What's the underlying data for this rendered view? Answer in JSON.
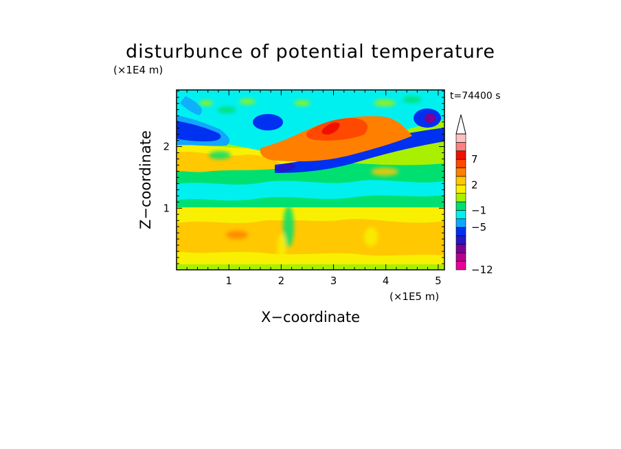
{
  "chart_data": {
    "type": "heatmap",
    "title": "disturbunce of potential temperature",
    "time_label": "t=74400 s",
    "xlabel": "X−coordinate",
    "ylabel": "Z−coordinate",
    "x_unit": "(×1E5 m)",
    "y_unit": "(×1E4 m)",
    "xlim": [
      0,
      5.12
    ],
    "ylim": [
      0,
      2.92
    ],
    "x_ticks": [
      {
        "value": 1,
        "label": "1"
      },
      {
        "value": 2,
        "label": "2"
      },
      {
        "value": 3,
        "label": "3"
      },
      {
        "value": 4,
        "label": "4"
      },
      {
        "value": 5,
        "label": "5"
      }
    ],
    "y_ticks": [
      {
        "value": 1,
        "label": "1"
      },
      {
        "value": 2,
        "label": "2"
      }
    ],
    "colorbar": {
      "colors": [
        "#e8009a",
        "#b6008e",
        "#7a0098",
        "#2418c8",
        "#0030f0",
        "#10a8ff",
        "#00f0f0",
        "#00e070",
        "#a8f000",
        "#f8f000",
        "#ffc800",
        "#ff8000",
        "#ff4800",
        "#f01000",
        "#ff8080",
        "#ffc0c0"
      ],
      "labels": [
        {
          "value": "-12",
          "text": "−12"
        },
        {
          "value": "-5",
          "text": "−5"
        },
        {
          "value": "-1",
          "text": "−1"
        },
        {
          "value": "2",
          "text": "2"
        },
        {
          "value": "7",
          "text": "7"
        }
      ],
      "extend": "max"
    },
    "field": [
      {
        "z": [
          0.0,
          0.1
        ],
        "level": "lightgreen"
      },
      {
        "z": [
          0.1,
          0.35
        ],
        "level": "yellow"
      },
      {
        "z": [
          0.35,
          0.7
        ],
        "level": "orange"
      },
      {
        "z": [
          0.7,
          0.85
        ],
        "level": "yellow"
      },
      {
        "z": [
          0.85,
          1.1
        ],
        "level": "green"
      },
      {
        "z": [
          1.1,
          1.35
        ],
        "level": "cyan"
      },
      {
        "z": [
          1.35,
          1.6
        ],
        "level": "green"
      },
      {
        "z": [
          1.6,
          1.9
        ],
        "level": "yellow"
      },
      {
        "z": [
          1.9,
          2.3
        ],
        "level": "dark-blue band rising from x=2.0 to x=5.1"
      },
      {
        "z": [
          2.1,
          2.7
        ],
        "level": "orange/red maximum near x=3.0"
      },
      {
        "z": [
          2.7,
          2.92
        ],
        "level": "cyan"
      }
    ]
  }
}
